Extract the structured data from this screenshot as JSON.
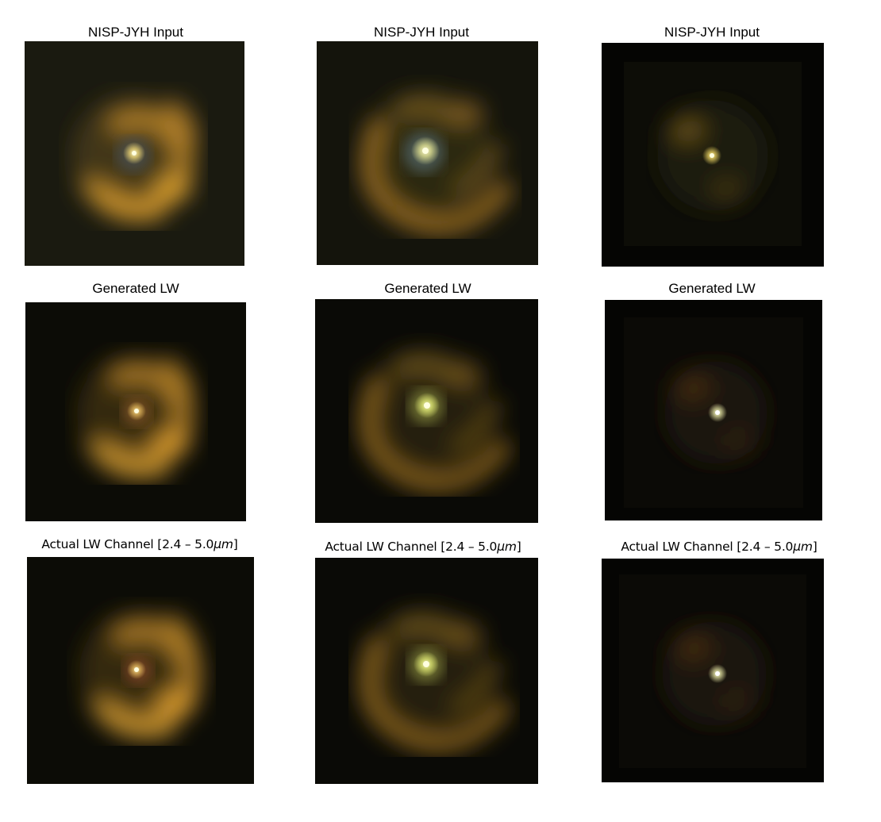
{
  "rows": [
    {
      "label": "NISP-JYH  Input",
      "panels": [
        "col1-input",
        "col2-input",
        "col3-input"
      ]
    },
    {
      "label": "Generated LW",
      "panels": [
        "col1-generated",
        "col2-generated",
        "col3-generated"
      ]
    },
    {
      "label_prefix": "Actual LW Channel [2.4 – 5.0",
      "label_unit": "μm",
      "label_suffix": "]"
    }
  ],
  "colors": {
    "background": "#000000",
    "galaxy_arm": "#c89630",
    "core": "#fffbd0"
  }
}
